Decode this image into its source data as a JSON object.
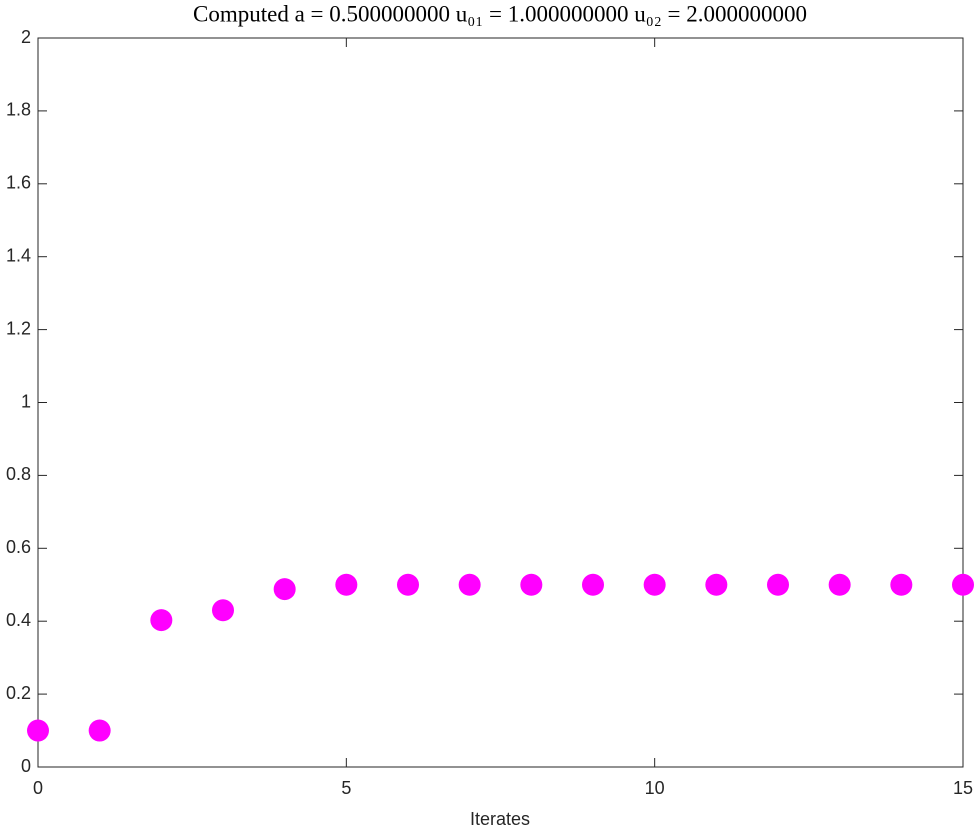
{
  "chart_data": {
    "type": "scatter",
    "title": "Computed a = 0.500000000 u₀₁ = 1.000000000 u₀₂ = 2.000000000",
    "x_label": "Iterates",
    "x": [
      0,
      1,
      2,
      3,
      4,
      5,
      6,
      7,
      8,
      9,
      10,
      11,
      12,
      13,
      14,
      15
    ],
    "series": [
      {
        "color": "#ff00ff",
        "values": [
          0.1,
          0.1,
          0.403,
          0.43,
          0.488,
          0.5,
          0.5,
          0.5,
          0.5,
          0.5,
          0.5,
          0.5,
          0.5,
          0.5,
          0.5,
          0.5
        ]
      }
    ],
    "xlim": [
      0,
      15
    ],
    "xticks": [
      0,
      5,
      10,
      15
    ],
    "ylim": [
      0,
      2
    ],
    "yticks": [
      0,
      0.2,
      0.4,
      0.6,
      0.8,
      1,
      1.2,
      1.4,
      1.6,
      1.8,
      2
    ],
    "grid": false
  }
}
